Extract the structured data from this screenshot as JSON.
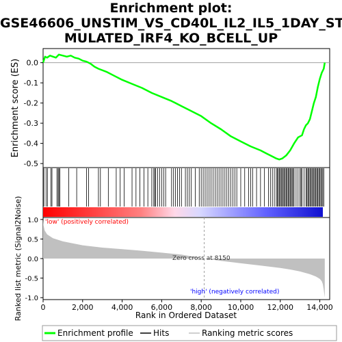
{
  "title_lines": [
    "Enrichment plot:",
    "GSE46606_UNSTIM_VS_CD40L_IL2_IL5_1DAY_STI",
    "MULATED_IRF4_KO_BCELL_UP"
  ],
  "colors": {
    "es_line": "#00ff00",
    "hits": "#000000",
    "metric_fill": "#c0c0c0",
    "positive_label": "#ff0000",
    "negative_label": "#0000ff",
    "zero_line": "#a0a0a0"
  },
  "chart_data": [
    {
      "type": "line",
      "name": "enrichment-score-panel",
      "ylabel": "Enrichment score (ES)",
      "ylim": [
        -0.52,
        0.07
      ],
      "xlim": [
        0,
        14500
      ],
      "yticks": [
        0.0,
        -0.1,
        -0.2,
        -0.3,
        -0.4,
        -0.5
      ],
      "ytick_labels": [
        "0.0",
        "-0.1",
        "-0.2",
        "-0.3",
        "-0.4",
        "-0.5"
      ],
      "grid": false,
      "x": [
        0,
        100,
        200,
        350,
        500,
        650,
        800,
        1000,
        1200,
        1400,
        1600,
        1800,
        2000,
        2200,
        2400,
        2600,
        2800,
        3200,
        3600,
        4000,
        4500,
        5000,
        5500,
        6000,
        6500,
        7000,
        7500,
        8000,
        8500,
        9000,
        9500,
        10000,
        10500,
        11000,
        11300,
        11600,
        11800,
        11950,
        12100,
        12300,
        12500,
        12700,
        12900,
        13100,
        13200,
        13300,
        13400,
        13500,
        13600,
        13700,
        13800,
        13900,
        14000,
        14100,
        14200,
        14250
      ],
      "y": [
        0.0,
        0.03,
        0.025,
        0.035,
        0.03,
        0.025,
        0.04,
        0.035,
        0.03,
        0.035,
        0.025,
        0.02,
        0.01,
        0.005,
        -0.005,
        -0.02,
        -0.03,
        -0.045,
        -0.065,
        -0.085,
        -0.105,
        -0.125,
        -0.15,
        -0.17,
        -0.19,
        -0.215,
        -0.24,
        -0.265,
        -0.3,
        -0.33,
        -0.365,
        -0.39,
        -0.415,
        -0.435,
        -0.45,
        -0.465,
        -0.475,
        -0.48,
        -0.475,
        -0.46,
        -0.435,
        -0.4,
        -0.37,
        -0.36,
        -0.33,
        -0.31,
        -0.3,
        -0.28,
        -0.24,
        -0.2,
        -0.17,
        -0.12,
        -0.08,
        -0.05,
        -0.03,
        0.0
      ]
    },
    {
      "type": "scatter",
      "name": "hits-panel",
      "hit_ranks": [
        40,
        150,
        220,
        400,
        450,
        700,
        760,
        800,
        850,
        1300,
        1700,
        2200,
        2300,
        2800,
        2900,
        3300,
        3700,
        3900,
        4100,
        4500,
        4700,
        4900,
        5100,
        5300,
        5500,
        5600,
        5650,
        5700,
        5800,
        5900,
        6000,
        6100,
        6200,
        6500,
        6600,
        6700,
        6800,
        6900,
        7000,
        7200,
        7300,
        7400,
        7500,
        7700,
        7900,
        8000,
        8100,
        8200,
        8300,
        8400,
        8500,
        8600,
        8700,
        8800,
        8900,
        9000,
        9100,
        9200,
        9300,
        9400,
        9500,
        9600,
        9700,
        9800,
        10000,
        10200,
        10400,
        10500,
        10600,
        10800,
        11000,
        11200,
        11400,
        11500,
        11600,
        11700,
        11800,
        11850,
        11900,
        11950,
        12000,
        12050,
        12100,
        12150,
        12200,
        12250,
        12300,
        12350,
        12400,
        12450,
        12500,
        12550,
        12600,
        12650,
        12700,
        12800,
        12900,
        13000,
        13050,
        13100,
        13200,
        13300,
        13350,
        13400,
        13450,
        13500,
        13550,
        13600,
        13650,
        13700,
        13750,
        13800,
        13850,
        13900,
        13950,
        14000,
        14050,
        14100,
        14150,
        14200
      ]
    },
    {
      "type": "area",
      "name": "ranked-metric-panel",
      "xlabel": "Rank in Ordered Dataset",
      "ylabel": "Ranked list metric (Signal2Noise)",
      "ylim": [
        -1.05,
        1.05
      ],
      "xlim": [
        0,
        14500
      ],
      "yticks": [
        1.0,
        0.5,
        0.0,
        -0.5,
        -1.0
      ],
      "ytick_labels": [
        "1.0",
        "0.5",
        "0.0",
        "-0.5",
        "-1.0"
      ],
      "xticks": [
        0,
        2000,
        4000,
        6000,
        8000,
        10000,
        12000,
        14000
      ],
      "xtick_labels": [
        "0",
        "2,000",
        "4,000",
        "6,000",
        "8,000",
        "10,000",
        "12,000",
        "14,000"
      ],
      "x": [
        0,
        20,
        80,
        200,
        500,
        1000,
        1500,
        2000,
        3000,
        4000,
        5000,
        6000,
        7000,
        8150,
        9000,
        10000,
        11000,
        12000,
        12500,
        13000,
        13500,
        13800,
        14000,
        14100,
        14150,
        14200,
        14250
      ],
      "y": [
        1.0,
        0.85,
        0.72,
        0.62,
        0.52,
        0.44,
        0.39,
        0.34,
        0.28,
        0.24,
        0.2,
        0.15,
        0.1,
        0.0,
        -0.06,
        -0.12,
        -0.18,
        -0.24,
        -0.28,
        -0.33,
        -0.4,
        -0.46,
        -0.52,
        -0.58,
        -0.65,
        -0.8,
        -1.0
      ],
      "zero_cross_text": "Zero cross at 8150",
      "zero_cross_rank": 8150,
      "positive_label": "'low' (positively correlated)",
      "negative_label": "'high' (negatively correlated)"
    }
  ],
  "legend": {
    "placement": "bottom",
    "items": [
      {
        "label": "Enrichment profile",
        "color": "#00ff00"
      },
      {
        "label": "Hits",
        "color": "#000000"
      },
      {
        "label": "Ranking metric scores",
        "color": "#c0c0c0"
      }
    ]
  }
}
